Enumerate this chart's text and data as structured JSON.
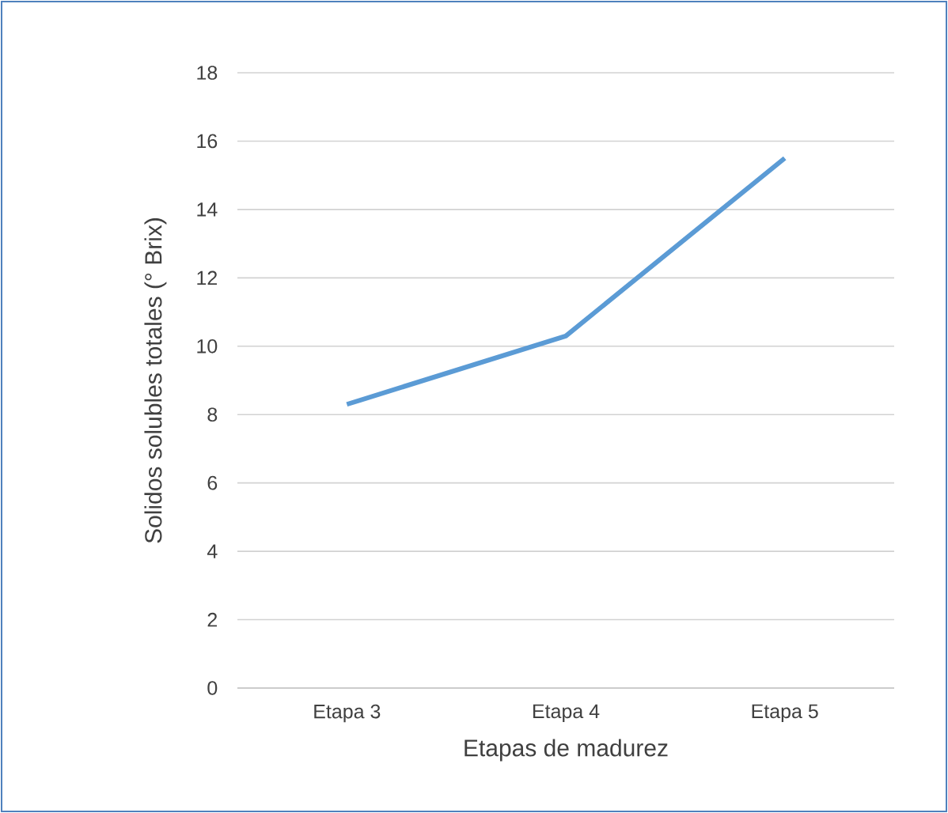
{
  "chart_data": {
    "type": "line",
    "xlabel": "Etapas de madurez",
    "ylabel": "Solidos solubles totales (° Brix)",
    "categories": [
      "Etapa 3",
      "Etapa 4",
      "Etapa 5"
    ],
    "series": [
      {
        "color": "#5b9bd5",
        "values": [
          8.3,
          10.3,
          15.5
        ]
      }
    ],
    "ylim": [
      0,
      18
    ],
    "yticks": [
      0,
      2,
      4,
      6,
      8,
      10,
      12,
      14,
      16,
      18
    ],
    "grid": "y",
    "marker": "none",
    "line_style": "solid"
  }
}
